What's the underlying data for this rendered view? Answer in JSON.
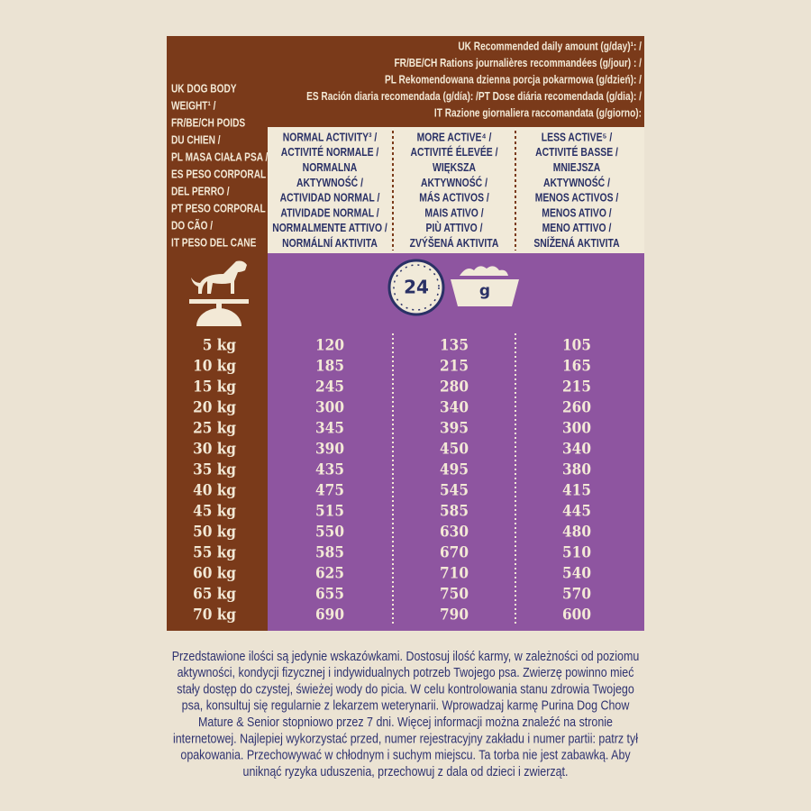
{
  "header": {
    "lines": [
      "UK Recommended daily amount (g/day)¹: /",
      "FR/BE/CH Rations journalières recommandées (g/jour) : /",
      "PL Rekomendowana dzienna porcja pokarmowa (g/dzień): /",
      "ES Ración diaria recomendada (g/día): /PT Dose diária recomendada (g/dia): /",
      "IT Razione giornaliera raccomandata (g/giorno):"
    ]
  },
  "weight_header": {
    "lines": [
      "UK DOG BODY",
      "WEIGHT¹ /",
      "FR/BE/CH POIDS",
      "DU CHIEN /",
      "PL MASA CIAŁA PSA /",
      "ES PESO CORPORAL",
      "DEL PERRO /",
      "PT PESO CORPORAL",
      "DO CÃO /",
      "IT PESO DEL CANE"
    ]
  },
  "columns": [
    {
      "lines": [
        "NORMAL ACTIVITY³ /",
        "ACTIVITÉ NORMALE /",
        "NORMALNA",
        "AKTYWNOŚĆ /",
        "ACTIVIDAD NORMAL /",
        "ATIVIDADE NORMAL /",
        "NORMALMENTE ATTIVO /",
        "NORMÁLNÍ AKTIVITA"
      ]
    },
    {
      "lines": [
        "MORE ACTIVE⁴ /",
        "ACTIVITÉ ÉLEVÉE /",
        "WIĘKSZA",
        "AKTYWNOŚĆ /",
        "MÁS ACTIVOS /",
        "MAIS ATIVO /",
        "PIÙ ATTIVO /",
        "ZVÝŠENÁ AKTIVITA"
      ]
    },
    {
      "lines": [
        "LESS ACTIVE⁵ /",
        "ACTIVITÉ BASSE /",
        "MNIEJSZA",
        "AKTYWNOŚĆ /",
        "MENOS ACTIVOS /",
        "MENOS ATIVO /",
        "MENO ATTIVO /",
        "SNÍŽENÁ AKTIVITA"
      ]
    }
  ],
  "icons": {
    "clock_label": "24",
    "bowl_label": "g"
  },
  "table": {
    "rows": [
      [
        "5 kg",
        120,
        135,
        105
      ],
      [
        "10 kg",
        185,
        215,
        165
      ],
      [
        "15 kg",
        245,
        280,
        215
      ],
      [
        "20 kg",
        300,
        340,
        260
      ],
      [
        "25 kg",
        345,
        395,
        300
      ],
      [
        "30 kg",
        390,
        450,
        340
      ],
      [
        "35 kg",
        435,
        495,
        380
      ],
      [
        "40 kg",
        475,
        545,
        415
      ],
      [
        "45 kg",
        515,
        585,
        445
      ],
      [
        "50 kg",
        550,
        630,
        480
      ],
      [
        "55 kg",
        585,
        670,
        510
      ],
      [
        "60 kg",
        625,
        710,
        540
      ],
      [
        "65 kg",
        655,
        750,
        570
      ],
      [
        "70 kg",
        690,
        790,
        600
      ]
    ]
  },
  "footer": {
    "lines": [
      "Przedstawione ilości są jedynie wskazówkami. Dostosuj ilość karmy, w zależności od poziomu",
      "aktywności, kondycji fizycznej i indywidualnych potrzeb Twojego psa. Zwierzę powinno mieć",
      "stały dostęp do czystej, świeżej wody do picia. W celu kontrolowania stanu zdrowia Twojego",
      "psa, konsultuj się regularnie z lekarzem weterynarii. Wprowadzaj karmę Purina Dog Chow",
      "Mature & Senior stopniowo przez 7 dni. Więcej informacji można znaleźć na stronie",
      "internetowej. Najlepiej wykorzystać przed, numer rejestracyjny zakładu i numer partii: patrz tył",
      "opakowania. Przechowywać w chłodnym i suchym miejscu. Ta torba nie jest zabawką. Aby",
      "uniknąć ryzyka uduszenia, przechowuj z dala od dzieci i zwierząt."
    ]
  }
}
